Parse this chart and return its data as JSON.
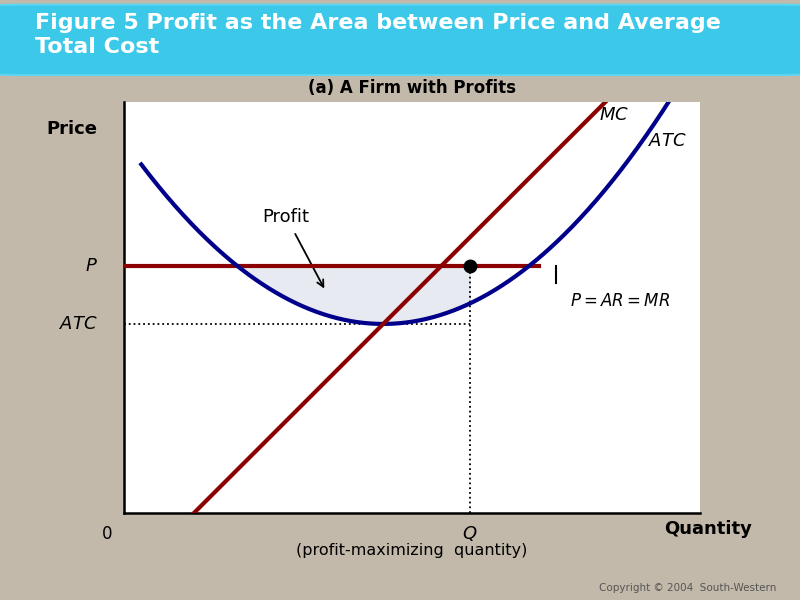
{
  "title_box_text": "Figure 5 Profit as the Area between Price and Average\nTotal Cost",
  "subtitle": "(a) A Firm with Profits",
  "background_color": "#c2b9aa",
  "plot_bg_color": "#ffffff",
  "title_box_color_top": "#3cc8e8",
  "title_box_color_mid": "#1aa8cc",
  "title_text_color": "#ffffff",
  "xlabel": "Quantity",
  "ylabel": "Price",
  "x_range": [
    0,
    10
  ],
  "y_range": [
    0,
    10
  ],
  "P_level": 6.0,
  "ATC_min_y": 4.6,
  "ATC_min_x": 4.5,
  "Q_intersect": 6.0,
  "mc_color": "#8b0000",
  "atc_color": "#00008b",
  "mr_color": "#8b0000",
  "profit_fill_color": "#dde3ec",
  "profit_fill_alpha": 0.7,
  "atc_a": 0.22,
  "mc_slope": 1.4,
  "copyright": "Copyright © 2004  South-Western"
}
